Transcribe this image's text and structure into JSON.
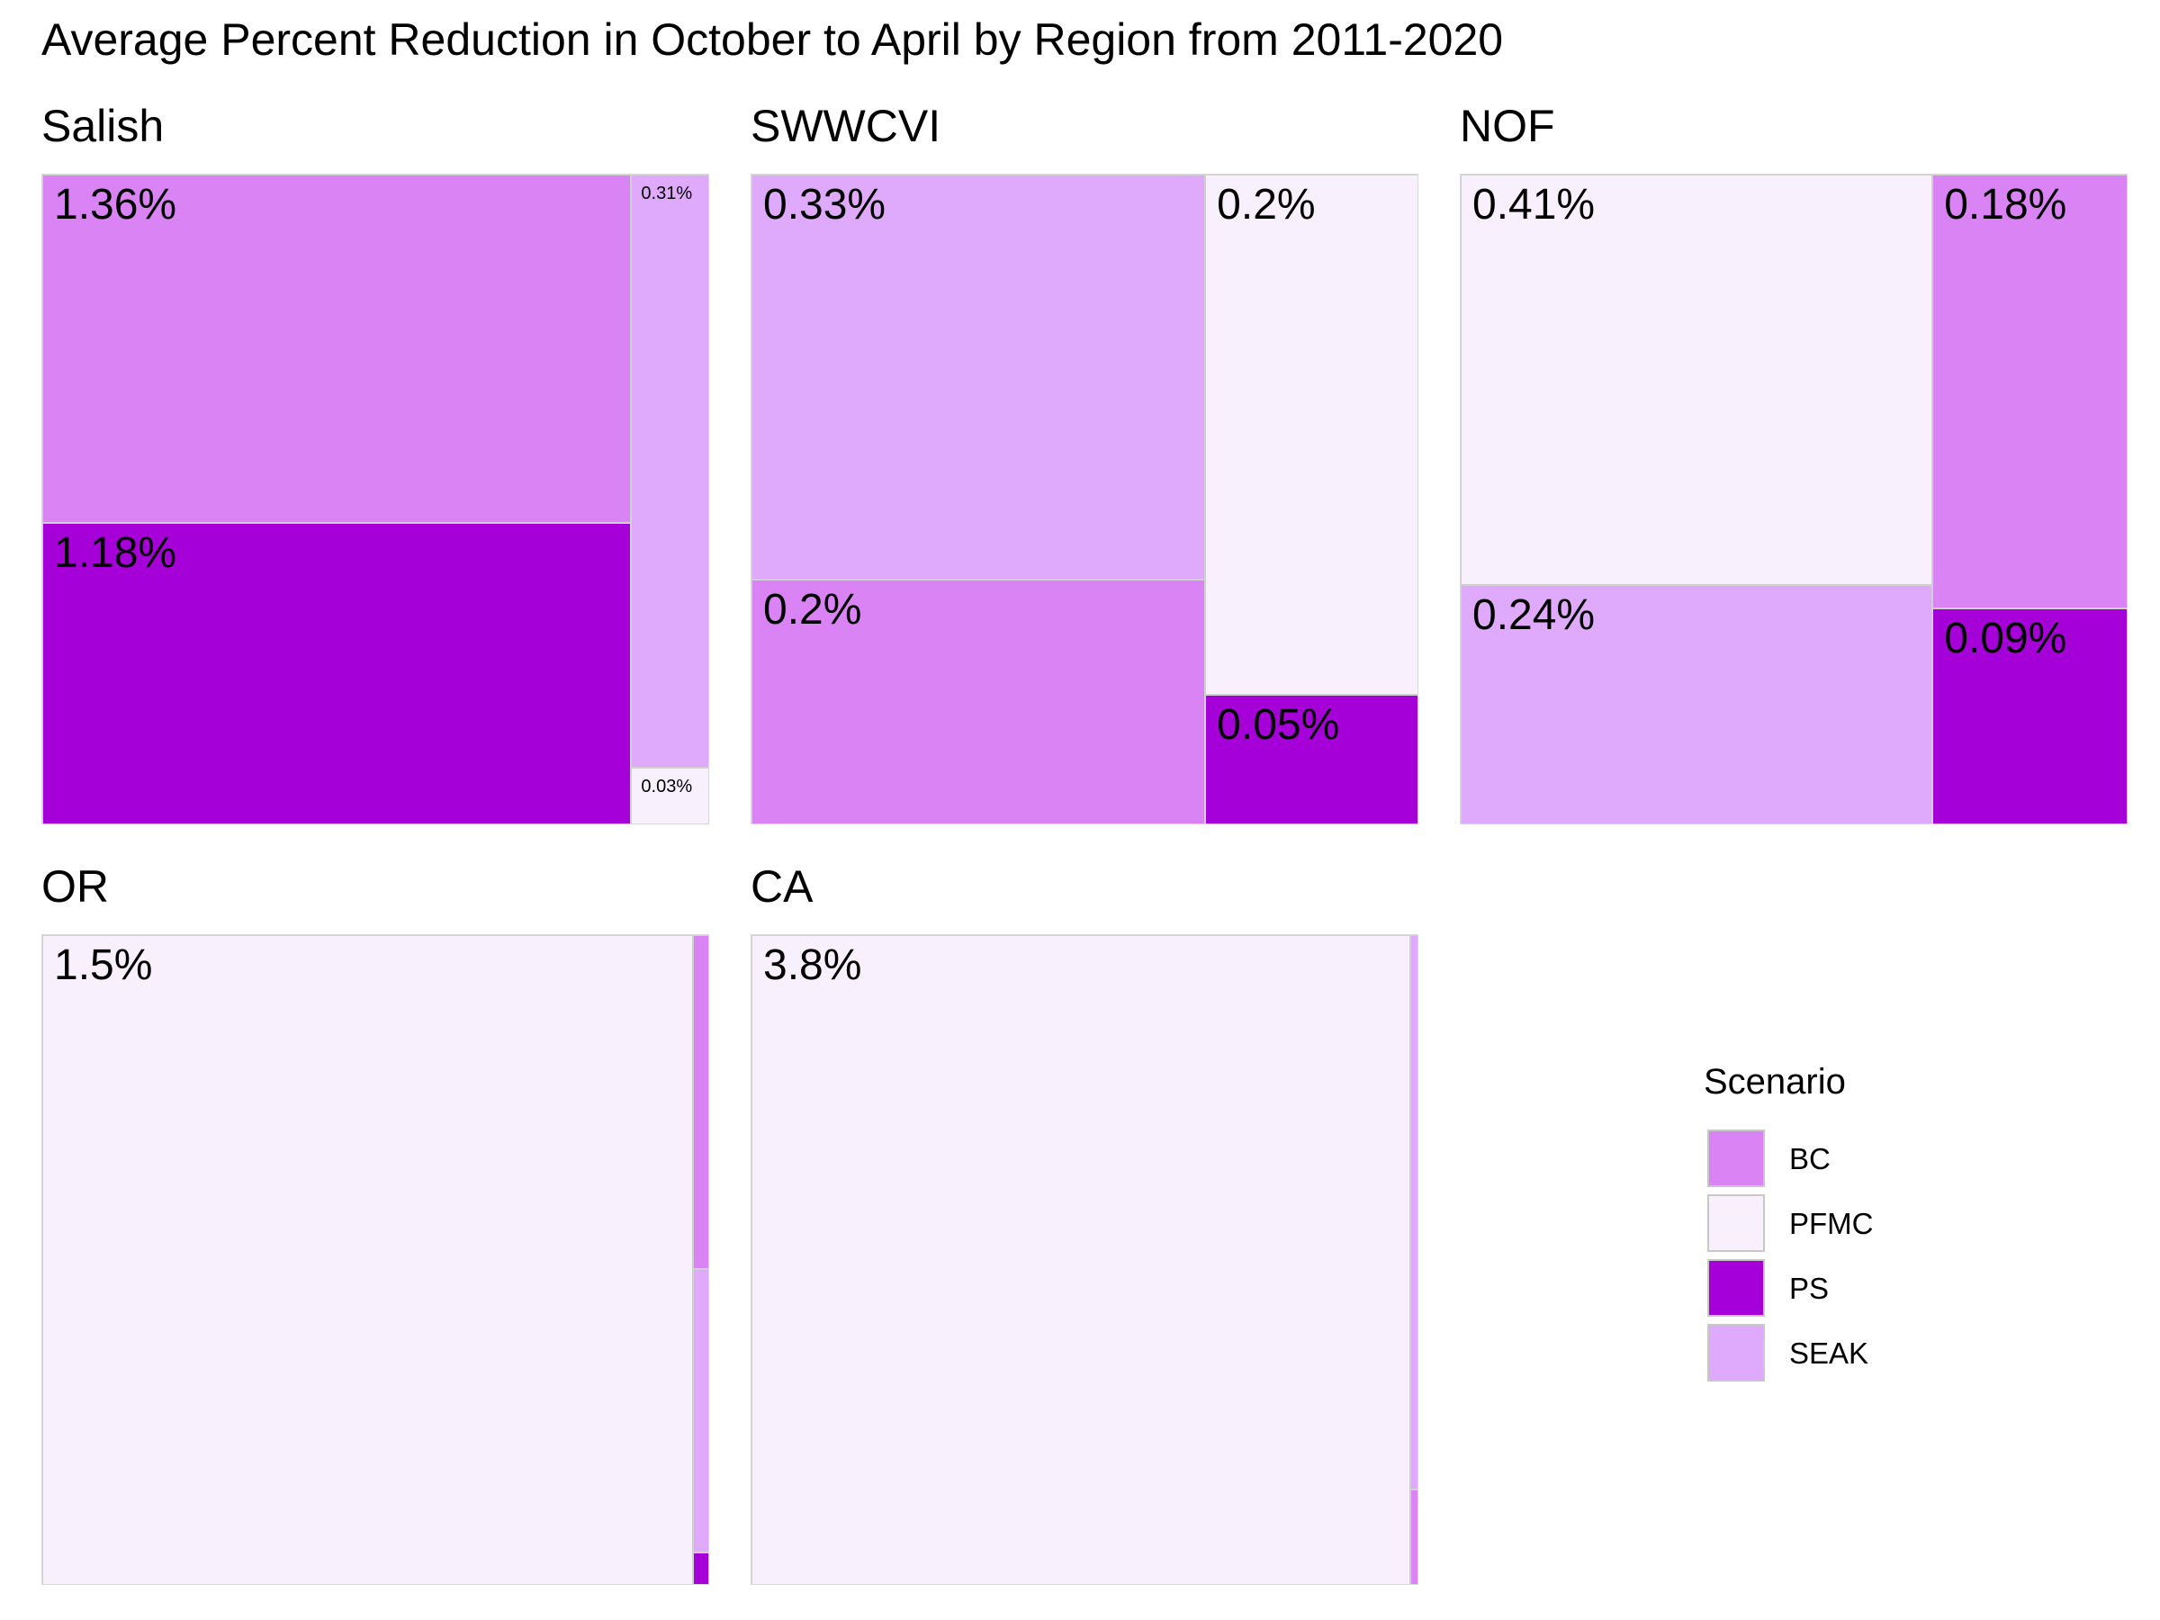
{
  "chart_data": {
    "type": "treemap",
    "title": "Average Percent Reduction in October to April by Region from 2011-2020",
    "legend": {
      "title": "Scenario",
      "placement": "right",
      "items": [
        {
          "name": "BC",
          "color": "#d983f5"
        },
        {
          "name": "PFMC",
          "color": "#f9f0fd"
        },
        {
          "name": "PS",
          "color": "#a600d8"
        },
        {
          "name": "SEAK",
          "color": "#e0aafc"
        }
      ]
    },
    "panels": [
      {
        "name": "Salish",
        "tiles": [
          {
            "scenario": "BC",
            "value": 1.36,
            "label": "1.36%"
          },
          {
            "scenario": "PS",
            "value": 1.18,
            "label": "1.18%"
          },
          {
            "scenario": "SEAK",
            "value": 0.31,
            "label": "0.31%"
          },
          {
            "scenario": "PFMC",
            "value": 0.03,
            "label": "0.03%"
          }
        ]
      },
      {
        "name": "SWWCVI",
        "tiles": [
          {
            "scenario": "SEAK",
            "value": 0.33,
            "label": "0.33%"
          },
          {
            "scenario": "BC",
            "value": 0.2,
            "label": "0.2%"
          },
          {
            "scenario": "PFMC",
            "value": 0.2,
            "label": "0.2%"
          },
          {
            "scenario": "PS",
            "value": 0.05,
            "label": "0.05%"
          }
        ]
      },
      {
        "name": "NOF",
        "tiles": [
          {
            "scenario": "PFMC",
            "value": 0.41,
            "label": "0.41%"
          },
          {
            "scenario": "SEAK",
            "value": 0.24,
            "label": "0.24%"
          },
          {
            "scenario": "BC",
            "value": 0.18,
            "label": "0.18%"
          },
          {
            "scenario": "PS",
            "value": 0.09,
            "label": "0.09%"
          }
        ]
      },
      {
        "name": "OR",
        "tiles": [
          {
            "scenario": "PFMC",
            "value": 1.5,
            "label": "1.5%"
          },
          {
            "scenario": "BC",
            "value": 0.02,
            "label": ""
          },
          {
            "scenario": "SEAK",
            "value": 0.017,
            "label": ""
          },
          {
            "scenario": "PS",
            "value": 0.002,
            "label": ""
          }
        ]
      },
      {
        "name": "CA",
        "tiles": [
          {
            "scenario": "PFMC",
            "value": 3.8,
            "label": "3.8%"
          },
          {
            "scenario": "SEAK",
            "value": 0.046,
            "label": ""
          },
          {
            "scenario": "BC",
            "value": 0.008,
            "label": ""
          }
        ]
      }
    ]
  }
}
